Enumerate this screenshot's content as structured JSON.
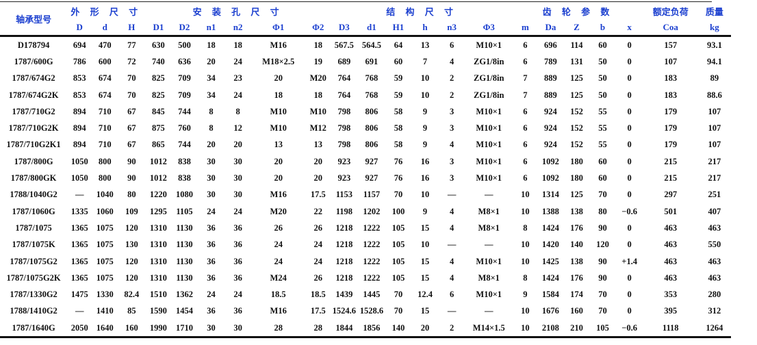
{
  "table": {
    "model_header": "轴承型号",
    "groups": [
      {
        "label": "外 形 尺 寸",
        "span": 3
      },
      {
        "label": "安 装 孔 尺 寸",
        "span": 6
      },
      {
        "label": "结 构 尺 寸",
        "span": 6
      },
      {
        "label": "齿 轮 参 数",
        "span": 5
      },
      {
        "label": "额定负荷",
        "span": 1
      },
      {
        "label": "质量",
        "span": 1
      }
    ],
    "columns": [
      "D",
      "d",
      "H",
      "D1",
      "D2",
      "n1",
      "n2",
      "Φ1",
      "Φ2",
      "D3",
      "d1",
      "H1",
      "h",
      "n3",
      "Φ3",
      "m",
      "Da",
      "Z",
      "b",
      "x",
      "Coa",
      "kg"
    ],
    "header_color": "#1b3fcf",
    "rows": [
      [
        "D178794",
        "694",
        "470",
        "77",
        "630",
        "500",
        "18",
        "18",
        "M16",
        "18",
        "567.5",
        "564.5",
        "64",
        "13",
        "6",
        "M10×1",
        "6",
        "696",
        "114",
        "60",
        "0",
        "157",
        "93.1"
      ],
      [
        "1787/600G",
        "786",
        "600",
        "72",
        "740",
        "636",
        "20",
        "24",
        "M18×2.5",
        "19",
        "689",
        "691",
        "60",
        "7",
        "4",
        "ZG1/8in",
        "6",
        "789",
        "131",
        "50",
        "0",
        "107",
        "94.1"
      ],
      [
        "1787/674G2",
        "853",
        "674",
        "70",
        "825",
        "709",
        "34",
        "23",
        "20",
        "M20",
        "764",
        "768",
        "59",
        "10",
        "2",
        "ZG1/8in",
        "7",
        "889",
        "125",
        "50",
        "0",
        "183",
        "89"
      ],
      [
        "1787/674G2K",
        "853",
        "674",
        "70",
        "825",
        "709",
        "34",
        "24",
        "18",
        "18",
        "764",
        "768",
        "59",
        "10",
        "2",
        "ZG1/8in",
        "7",
        "889",
        "125",
        "50",
        "0",
        "183",
        "88.6"
      ],
      [
        "1787/710G2",
        "894",
        "710",
        "67",
        "845",
        "744",
        "8",
        "8",
        "M10",
        "M10",
        "798",
        "806",
        "58",
        "9",
        "3",
        "M10×1",
        "6",
        "924",
        "152",
        "55",
        "0",
        "179",
        "107"
      ],
      [
        "1787/710G2K",
        "894",
        "710",
        "67",
        "875",
        "760",
        "8",
        "12",
        "M10",
        "M12",
        "798",
        "806",
        "58",
        "9",
        "3",
        "M10×1",
        "6",
        "924",
        "152",
        "55",
        "0",
        "179",
        "107"
      ],
      [
        "1787/710G2K1",
        "894",
        "710",
        "67",
        "865",
        "744",
        "20",
        "20",
        "13",
        "13",
        "798",
        "806",
        "58",
        "9",
        "4",
        "M10×1",
        "6",
        "924",
        "152",
        "55",
        "0",
        "179",
        "107"
      ],
      [
        "1787/800G",
        "1050",
        "800",
        "90",
        "1012",
        "838",
        "30",
        "30",
        "20",
        "20",
        "923",
        "927",
        "76",
        "16",
        "3",
        "M10×1",
        "6",
        "1092",
        "180",
        "60",
        "0",
        "215",
        "217"
      ],
      [
        "1787/800GK",
        "1050",
        "800",
        "90",
        "1012",
        "838",
        "30",
        "30",
        "20",
        "20",
        "923",
        "927",
        "76",
        "16",
        "3",
        "M10×1",
        "6",
        "1092",
        "180",
        "60",
        "0",
        "215",
        "217"
      ],
      [
        "1788/1040G2",
        "—",
        "1040",
        "80",
        "1220",
        "1080",
        "30",
        "30",
        "M16",
        "17.5",
        "1153",
        "1157",
        "70",
        "10",
        "—",
        "—",
        "10",
        "1314",
        "125",
        "70",
        "0",
        "297",
        "251"
      ],
      [
        "1787/1060G",
        "1335",
        "1060",
        "109",
        "1295",
        "1105",
        "24",
        "24",
        "M20",
        "22",
        "1198",
        "1202",
        "100",
        "9",
        "4",
        "M8×1",
        "10",
        "1388",
        "138",
        "80",
        "−0.6",
        "501",
        "407"
      ],
      [
        "1787/1075",
        "1365",
        "1075",
        "120",
        "1310",
        "1130",
        "36",
        "36",
        "26",
        "26",
        "1218",
        "1222",
        "105",
        "15",
        "4",
        "M8×1",
        "8",
        "1424",
        "176",
        "90",
        "0",
        "463",
        "463"
      ],
      [
        "1787/1075K",
        "1365",
        "1075",
        "130",
        "1310",
        "1130",
        "36",
        "36",
        "24",
        "24",
        "1218",
        "1222",
        "105",
        "10",
        "—",
        "—",
        "10",
        "1420",
        "140",
        "120",
        "0",
        "463",
        "550"
      ],
      [
        "1787/1075G2",
        "1365",
        "1075",
        "120",
        "1310",
        "1130",
        "36",
        "36",
        "24",
        "24",
        "1218",
        "1222",
        "105",
        "15",
        "4",
        "M10×1",
        "10",
        "1425",
        "138",
        "90",
        "+1.4",
        "463",
        "463"
      ],
      [
        "1787/1075G2K",
        "1365",
        "1075",
        "120",
        "1310",
        "1130",
        "36",
        "36",
        "M24",
        "26",
        "1218",
        "1222",
        "105",
        "15",
        "4",
        "M8×1",
        "8",
        "1424",
        "176",
        "90",
        "0",
        "463",
        "463"
      ],
      [
        "1787/1330G2",
        "1475",
        "1330",
        "82.4",
        "1510",
        "1362",
        "24",
        "24",
        "18.5",
        "18.5",
        "1439",
        "1445",
        "70",
        "12.4",
        "6",
        "M10×1",
        "9",
        "1584",
        "174",
        "70",
        "0",
        "353",
        "280"
      ],
      [
        "1788/1410G2",
        "—",
        "1410",
        "85",
        "1590",
        "1454",
        "36",
        "36",
        "M16",
        "17.5",
        "1524.6",
        "1528.6",
        "70",
        "15",
        "—",
        "—",
        "10",
        "1676",
        "160",
        "70",
        "0",
        "395",
        "312"
      ],
      [
        "1787/1640G",
        "2050",
        "1640",
        "160",
        "1990",
        "1710",
        "30",
        "30",
        "28",
        "28",
        "1844",
        "1856",
        "140",
        "20",
        "2",
        "M14×1.5",
        "10",
        "2108",
        "210",
        "105",
        "−0.6",
        "1118",
        "1264"
      ]
    ]
  }
}
